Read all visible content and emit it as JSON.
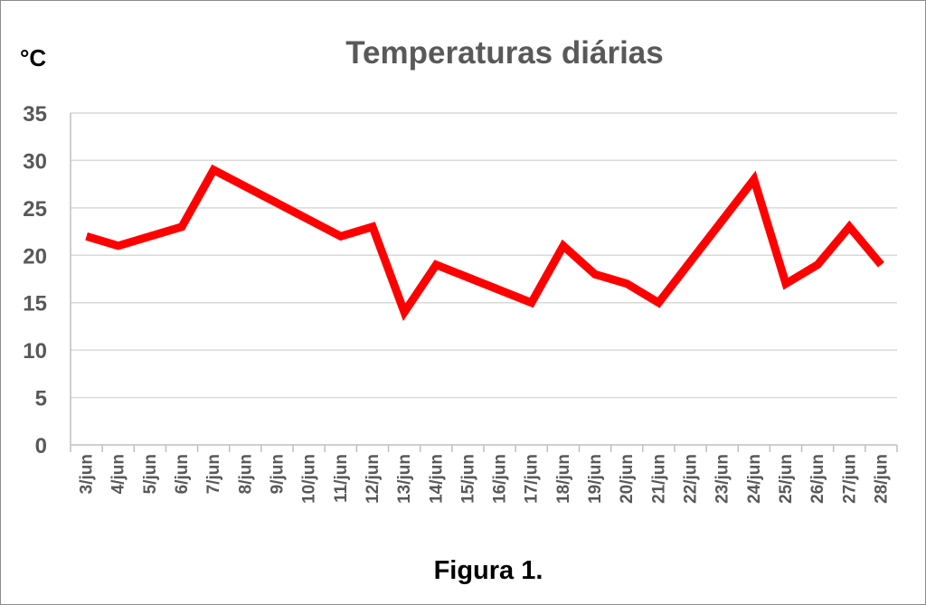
{
  "chart_data": {
    "type": "line",
    "title": "Temperaturas diárias",
    "ylabel": "°C",
    "xlabel": "",
    "caption": "Figura 1.",
    "ylim": [
      0,
      35
    ],
    "yticks": [
      0,
      5,
      10,
      15,
      20,
      25,
      30,
      35
    ],
    "grid": true,
    "legend": "none",
    "line_color": "#ff0000",
    "categories": [
      "3/jun",
      "4/jun",
      "5/jun",
      "6/jun",
      "7/jun",
      "8/jun",
      "9/jun",
      "10/jun",
      "11/jun",
      "12/jun",
      "13/jun",
      "14/jun",
      "15/jun",
      "16/jun",
      "17/jun",
      "18/jun",
      "19/jun",
      "20/jun",
      "21/jun",
      "22/jun",
      "23/jun",
      "24/jun",
      "25/jun",
      "26/jun",
      "27/jun",
      "28/jun"
    ],
    "values": [
      22,
      21,
      22,
      23,
      29,
      null,
      null,
      null,
      22,
      23,
      14,
      19,
      null,
      null,
      15,
      21,
      18,
      17,
      15,
      null,
      null,
      28,
      17,
      19,
      23,
      19
    ]
  }
}
